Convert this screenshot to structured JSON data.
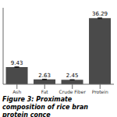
{
  "chart_data": {
    "type": "bar",
    "title": "Figure 3: Proximate composition of rice bran protein conce",
    "categories": [
      "Ash",
      "Fat",
      "Crude Fiber",
      "Protein"
    ],
    "values": [
      9.43,
      2.63,
      2.45,
      36.29
    ],
    "error_bars": [
      0.15,
      0.12,
      0.1,
      0.2
    ],
    "color": "#4a4a4a",
    "ylim": [
      0,
      42
    ],
    "data_labels": true,
    "tick_labels": "x",
    "grid": false
  }
}
